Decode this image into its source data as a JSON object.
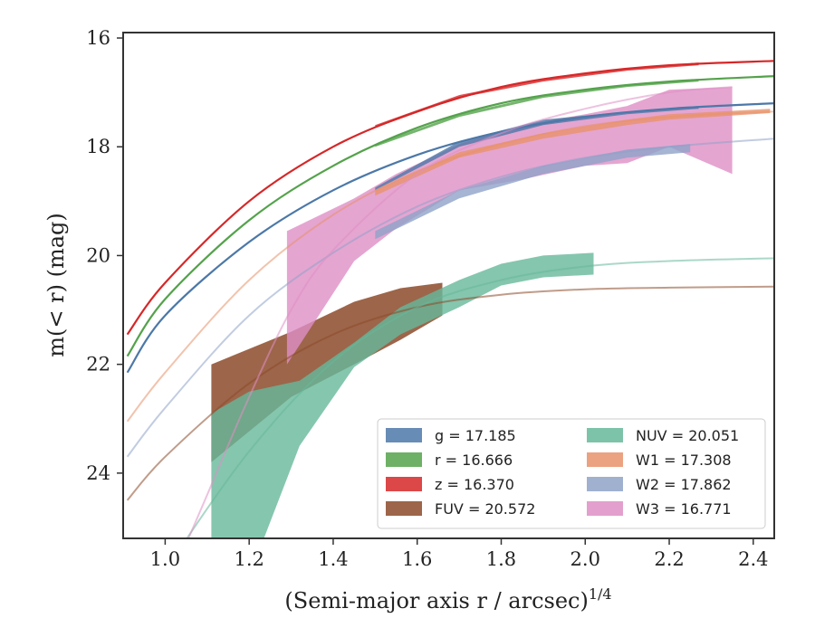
{
  "chart_data": {
    "type": "line",
    "xlabel": "(Semi-major axis r / arcsec)",
    "xlabel_power": "1/4",
    "ylabel": "m(< r) (mag)",
    "xlim": [
      0.9,
      2.45
    ],
    "ylim": [
      25.2,
      15.9
    ],
    "y_inverted": true,
    "grid": false,
    "legend_location": "lower right",
    "x_ticks": [
      "1.0",
      "1.2",
      "1.4",
      "1.6",
      "1.8",
      "2.0",
      "2.2",
      "2.4"
    ],
    "y_ticks": [
      "16",
      "18",
      "20",
      "22",
      "24"
    ],
    "series": [
      {
        "key": "g",
        "legend": "g = 17.185",
        "color": "#4c78a8",
        "model": [
          [
            0.91,
            22.15
          ],
          [
            1.0,
            21.1
          ],
          [
            1.2,
            19.75
          ],
          [
            1.4,
            18.8
          ],
          [
            1.6,
            18.15
          ],
          [
            1.8,
            17.72
          ],
          [
            2.0,
            17.45
          ],
          [
            2.2,
            17.3
          ],
          [
            2.45,
            17.2
          ]
        ],
        "band": [
          [
            1.5,
            18.8,
            18.75
          ],
          [
            1.7,
            18.0,
            17.9
          ],
          [
            1.9,
            17.6,
            17.5
          ],
          [
            2.1,
            17.4,
            17.35
          ],
          [
            2.27,
            17.3,
            17.25
          ]
        ]
      },
      {
        "key": "r",
        "legend": "r = 16.666",
        "color": "#54a24b",
        "model": [
          [
            0.91,
            21.85
          ],
          [
            1.0,
            20.8
          ],
          [
            1.2,
            19.35
          ],
          [
            1.4,
            18.35
          ],
          [
            1.6,
            17.65
          ],
          [
            1.8,
            17.2
          ],
          [
            2.0,
            16.95
          ],
          [
            2.2,
            16.8
          ],
          [
            2.45,
            16.7
          ]
        ],
        "band": [
          [
            1.5,
            18.0,
            17.95
          ],
          [
            1.7,
            17.45,
            17.4
          ],
          [
            1.9,
            17.1,
            17.05
          ],
          [
            2.1,
            16.9,
            16.85
          ],
          [
            2.27,
            16.8,
            16.75
          ]
        ]
      },
      {
        "key": "z",
        "legend": "z = 16.370",
        "color": "#d62728",
        "model": [
          [
            0.91,
            21.45
          ],
          [
            1.0,
            20.5
          ],
          [
            1.2,
            19.0
          ],
          [
            1.4,
            18.0
          ],
          [
            1.6,
            17.35
          ],
          [
            1.8,
            16.9
          ],
          [
            2.0,
            16.65
          ],
          [
            2.2,
            16.5
          ],
          [
            2.45,
            16.42
          ]
        ],
        "band": [
          [
            1.5,
            17.65,
            17.6
          ],
          [
            1.7,
            17.1,
            17.05
          ],
          [
            1.9,
            16.8,
            16.75
          ],
          [
            2.1,
            16.6,
            16.55
          ],
          [
            2.27,
            16.5,
            16.45
          ]
        ]
      },
      {
        "key": "FUV",
        "legend": "FUV = 20.572",
        "color": "#8c4a2a",
        "model": [
          [
            0.91,
            24.5
          ],
          [
            1.0,
            23.7
          ],
          [
            1.2,
            22.35
          ],
          [
            1.4,
            21.45
          ],
          [
            1.6,
            20.95
          ],
          [
            1.8,
            20.72
          ],
          [
            2.0,
            20.62
          ],
          [
            2.2,
            20.59
          ],
          [
            2.45,
            20.57
          ]
        ],
        "band": [
          [
            1.11,
            23.8,
            22.0
          ],
          [
            1.3,
            22.6,
            21.4
          ],
          [
            1.45,
            22.0,
            20.85
          ],
          [
            1.56,
            21.55,
            20.6
          ],
          [
            1.66,
            21.1,
            20.5
          ]
        ]
      },
      {
        "key": "NUV",
        "legend": "NUV = 20.051",
        "color": "#66b89a",
        "model": [
          [
            0.91,
            27.0
          ],
          [
            1.0,
            25.8
          ],
          [
            1.2,
            23.6
          ],
          [
            1.4,
            21.95
          ],
          [
            1.6,
            20.95
          ],
          [
            1.8,
            20.45
          ],
          [
            2.0,
            20.2
          ],
          [
            2.2,
            20.1
          ],
          [
            2.45,
            20.05
          ]
        ],
        "band": [
          [
            1.11,
            26.5,
            22.9
          ],
          [
            1.2,
            25.9,
            22.5
          ],
          [
            1.32,
            23.5,
            22.3
          ],
          [
            1.45,
            22.05,
            21.6
          ],
          [
            1.56,
            21.45,
            20.95
          ],
          [
            1.7,
            20.95,
            20.45
          ],
          [
            1.8,
            20.55,
            20.15
          ],
          [
            1.9,
            20.4,
            20.0
          ],
          [
            2.02,
            20.35,
            19.95
          ]
        ]
      },
      {
        "key": "W1",
        "legend": "W1 = 17.308",
        "color": "#e8926a",
        "model": [
          [
            0.91,
            23.05
          ],
          [
            1.0,
            22.15
          ],
          [
            1.2,
            20.45
          ],
          [
            1.4,
            19.25
          ],
          [
            1.6,
            18.45
          ],
          [
            1.8,
            17.95
          ],
          [
            2.0,
            17.62
          ],
          [
            2.2,
            17.45
          ],
          [
            2.45,
            17.35
          ]
        ],
        "band": [
          [
            1.5,
            18.9,
            18.8
          ],
          [
            1.7,
            18.2,
            18.1
          ],
          [
            1.9,
            17.85,
            17.75
          ],
          [
            2.1,
            17.6,
            17.5
          ],
          [
            2.2,
            17.5,
            17.4
          ],
          [
            2.44,
            17.38,
            17.3
          ]
        ]
      },
      {
        "key": "W2",
        "legend": "W2 = 17.862",
        "color": "#8fa3c8",
        "model": [
          [
            0.91,
            23.7
          ],
          [
            1.0,
            22.8
          ],
          [
            1.2,
            21.1
          ],
          [
            1.4,
            19.95
          ],
          [
            1.6,
            19.1
          ],
          [
            1.8,
            18.55
          ],
          [
            2.0,
            18.2
          ],
          [
            2.2,
            18.0
          ],
          [
            2.45,
            17.85
          ]
        ],
        "band": [
          [
            1.5,
            19.7,
            19.55
          ],
          [
            1.7,
            18.95,
            18.8
          ],
          [
            1.9,
            18.5,
            18.35
          ],
          [
            2.1,
            18.2,
            18.05
          ],
          [
            2.25,
            18.1,
            17.95
          ]
        ]
      },
      {
        "key": "W3",
        "legend": "W3 = 16.771",
        "color": "#de8fc5",
        "model": [
          [
            1.0,
            26.2
          ],
          [
            1.1,
            24.4
          ],
          [
            1.2,
            22.6
          ],
          [
            1.3,
            21.0
          ],
          [
            1.4,
            19.9
          ],
          [
            1.6,
            18.5
          ],
          [
            1.8,
            17.75
          ],
          [
            2.0,
            17.3
          ],
          [
            2.2,
            17.0
          ],
          [
            2.35,
            16.9
          ]
        ],
        "band": [
          [
            1.29,
            22.0,
            19.55
          ],
          [
            1.45,
            20.1,
            18.95
          ],
          [
            1.55,
            19.5,
            18.5
          ],
          [
            1.7,
            18.8,
            17.95
          ],
          [
            1.85,
            18.6,
            17.6
          ],
          [
            2.0,
            18.35,
            17.4
          ],
          [
            2.1,
            18.3,
            17.25
          ],
          [
            2.2,
            18.0,
            16.95
          ],
          [
            2.35,
            18.5,
            16.9
          ]
        ]
      }
    ]
  }
}
